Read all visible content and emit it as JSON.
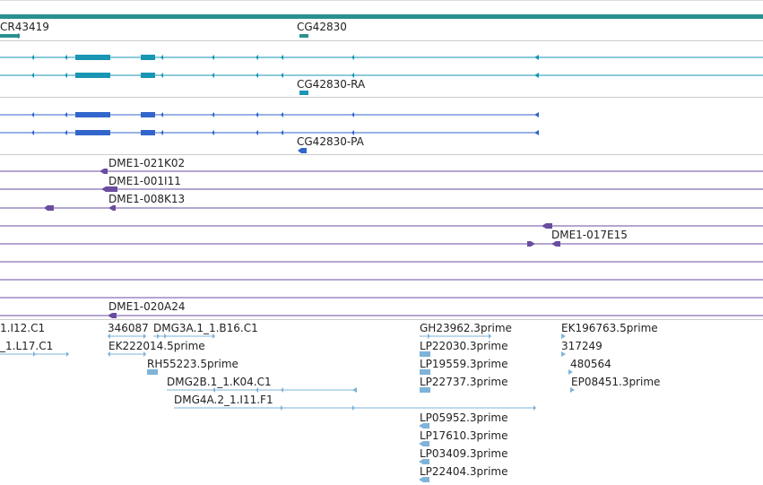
{
  "colors": {
    "ncrna": "#2a8f8f",
    "transcript_ra": "#1896b4",
    "transcript_pa": "#3366cc",
    "clone": "#6a4ca0",
    "est": "#7fb3d9",
    "separator": "#cccccc",
    "label": "#222222"
  },
  "tracks": {
    "gene": {
      "label_left": "CR43419",
      "label_right": "CG42830"
    },
    "transcript_ra": {
      "label": "CG42830-RA"
    },
    "transcript_pa": {
      "label": "CG42830-PA"
    },
    "clones": {
      "labels": [
        "DME1-021K02",
        "DME1-001I11",
        "DME1-008K13",
        "DME1-017E15",
        "DME1-020A24"
      ]
    },
    "ests": {
      "labels": [
        "1.I12.C1",
        "346087",
        "DMG3A.1_1.B16.C1",
        "GH23962.3prime",
        "EK196763.5prime",
        "_1.L17.C1",
        "EK222014.5prime",
        "LP22030.3prime",
        "317249",
        "RH55223.5prime",
        "LP19559.3prime",
        "480564",
        "DMG2B.1_1.K04.C1",
        "LP22737.3prime",
        "EP08451.3prime",
        "DMG4A.2_1.I11.F1",
        "LP05952.3prime",
        "LP17610.3prime",
        "LP03409.3prime",
        "LP22404.3prime"
      ]
    }
  }
}
